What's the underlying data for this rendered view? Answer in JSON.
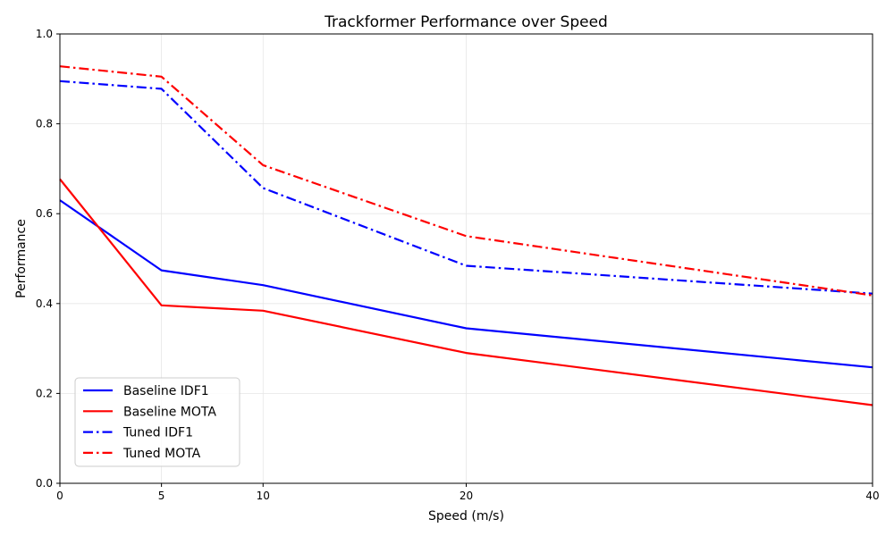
{
  "chart_data": {
    "type": "line",
    "title": "Trackformer Performance over Speed",
    "xlabel": "Speed (m/s)",
    "ylabel": "Performance",
    "x": [
      0,
      5,
      10,
      20,
      40
    ],
    "xlim": [
      0,
      40
    ],
    "ylim": [
      0,
      1.0
    ],
    "xticks": [
      "0",
      "5",
      "10",
      "20",
      "40"
    ],
    "yticks": [
      "0.0",
      "0.2",
      "0.4",
      "0.6",
      "0.8",
      "1.0"
    ],
    "grid": true,
    "legend_position": "lower-left",
    "series": [
      {
        "name": "Baseline IDF1",
        "values": [
          0.63,
          0.474,
          0.441,
          0.345,
          0.258
        ],
        "color": "#0000ff",
        "style": "solid"
      },
      {
        "name": "Baseline MOTA",
        "values": [
          0.677,
          0.396,
          0.384,
          0.29,
          0.174
        ],
        "color": "#ff0000",
        "style": "solid"
      },
      {
        "name": "Tuned IDF1",
        "values": [
          0.895,
          0.878,
          0.657,
          0.484,
          0.422
        ],
        "color": "#0000ff",
        "style": "dashdot"
      },
      {
        "name": "Tuned MOTA",
        "values": [
          0.928,
          0.905,
          0.708,
          0.55,
          0.418
        ],
        "color": "#ff0000",
        "style": "dashdot"
      }
    ]
  }
}
